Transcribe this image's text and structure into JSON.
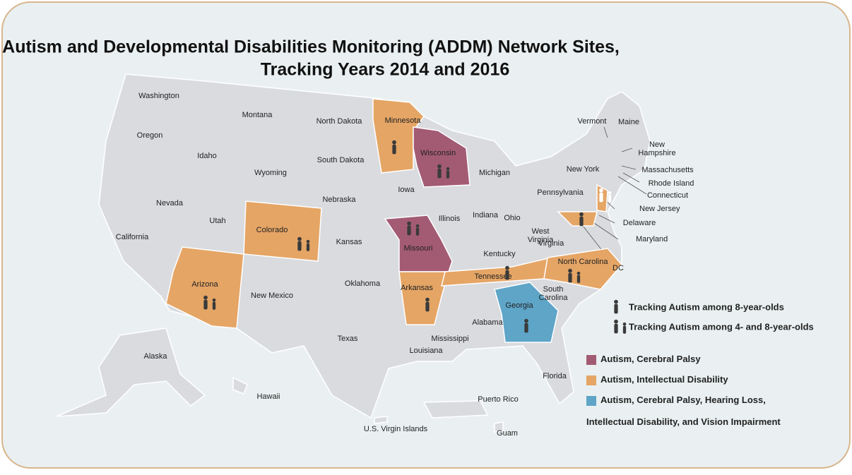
{
  "title": [
    "Autism and Developmental Disabilities Monitoring (ADDM) Network Sites,",
    "Tracking Years 2014 and 2016"
  ],
  "map": {
    "states": [
      {
        "lines": [
          "Washington"
        ]
      },
      {
        "lines": [
          "Oregon"
        ]
      },
      {
        "lines": [
          "Idaho"
        ]
      },
      {
        "lines": [
          "Montana"
        ]
      },
      {
        "lines": [
          "North Dakota"
        ]
      },
      {
        "lines": [
          "South Dakota"
        ]
      },
      {
        "lines": [
          "Wyoming"
        ]
      },
      {
        "lines": [
          "Nebraska"
        ]
      },
      {
        "lines": [
          "Iowa"
        ]
      },
      {
        "lines": [
          "Illinois"
        ]
      },
      {
        "lines": [
          "Indiana"
        ]
      },
      {
        "lines": [
          "Ohio"
        ]
      },
      {
        "lines": [
          "Michigan"
        ]
      },
      {
        "lines": [
          "Nevada"
        ]
      },
      {
        "lines": [
          "Utah"
        ]
      },
      {
        "lines": [
          "California"
        ]
      },
      {
        "lines": [
          "Kansas"
        ]
      },
      {
        "lines": [
          "Oklahoma"
        ]
      },
      {
        "lines": [
          "New Mexico"
        ]
      },
      {
        "lines": [
          "Texas"
        ]
      },
      {
        "lines": [
          "Louisiana"
        ]
      },
      {
        "lines": [
          "Mississippi"
        ]
      },
      {
        "lines": [
          "Alabama"
        ]
      },
      {
        "lines": [
          "Florida"
        ]
      },
      {
        "lines": [
          "South",
          "Carolina"
        ]
      },
      {
        "lines": [
          "West",
          "Virginia"
        ]
      },
      {
        "lines": [
          "Kentucky"
        ]
      },
      {
        "lines": [
          "Virginia"
        ]
      },
      {
        "lines": [
          "Pennsylvania"
        ]
      },
      {
        "lines": [
          "New York"
        ]
      },
      {
        "lines": [
          "Vermont"
        ]
      },
      {
        "lines": [
          "Maine"
        ]
      },
      {
        "lines": [
          "New",
          "Hampshire"
        ]
      },
      {
        "lines": [
          "Massachusetts"
        ]
      },
      {
        "lines": [
          "Rhode Island"
        ]
      },
      {
        "lines": [
          "Connecticut"
        ]
      },
      {
        "lines": [
          "Delaware"
        ]
      },
      {
        "lines": [
          "DC"
        ]
      },
      {
        "lines": [
          "Alaska"
        ]
      },
      {
        "lines": [
          "Hawaii"
        ]
      },
      {
        "lines": [
          "Puerto Rico"
        ]
      },
      {
        "lines": [
          "U.S. Virgin Islands"
        ]
      },
      {
        "lines": [
          "Guam"
        ]
      }
    ],
    "sites": [
      {
        "name": "Minnesota",
        "color": "#e5a565",
        "figures": 1
      },
      {
        "name": "Wisconsin",
        "color": "#a35b74",
        "figures": 2
      },
      {
        "name": "Colorado",
        "color": "#e5a565",
        "figures": 2
      },
      {
        "name": "Arizona",
        "color": "#e5a565",
        "figures": 2
      },
      {
        "name": "Missouri",
        "color": "#a35b74",
        "figures": 2
      },
      {
        "name": "Arkansas",
        "color": "#e5a565",
        "figures": 1
      },
      {
        "name": "Tennessee",
        "color": "#e5a565",
        "figures": 1
      },
      {
        "name": "North Carolina",
        "color": "#e5a565",
        "figures": 2
      },
      {
        "name": "Georgia",
        "color": "#5ea5c8",
        "figures": 1
      },
      {
        "name": "New Jersey",
        "color": "#e5a565",
        "figures": 2
      },
      {
        "name": "Maryland",
        "color": "#e5a565",
        "figures": 1
      }
    ]
  },
  "legend": {
    "icons": [
      {
        "figures": 1,
        "label": "Tracking Autism among 8-year-olds"
      },
      {
        "figures": 2,
        "label": "Tracking Autism among 4- and 8-year-olds"
      }
    ],
    "conditions": [
      {
        "color": "#a35b74",
        "lines": [
          "Autism, Cerebral Palsy"
        ]
      },
      {
        "color": "#e5a565",
        "lines": [
          "Autism, Intellectual Disability"
        ]
      },
      {
        "color": "#5ea5c8",
        "lines": [
          "Autism, Cerebral Palsy, Hearing Loss,",
          "Intellectual Disability, and Vision Impairment"
        ]
      }
    ]
  }
}
